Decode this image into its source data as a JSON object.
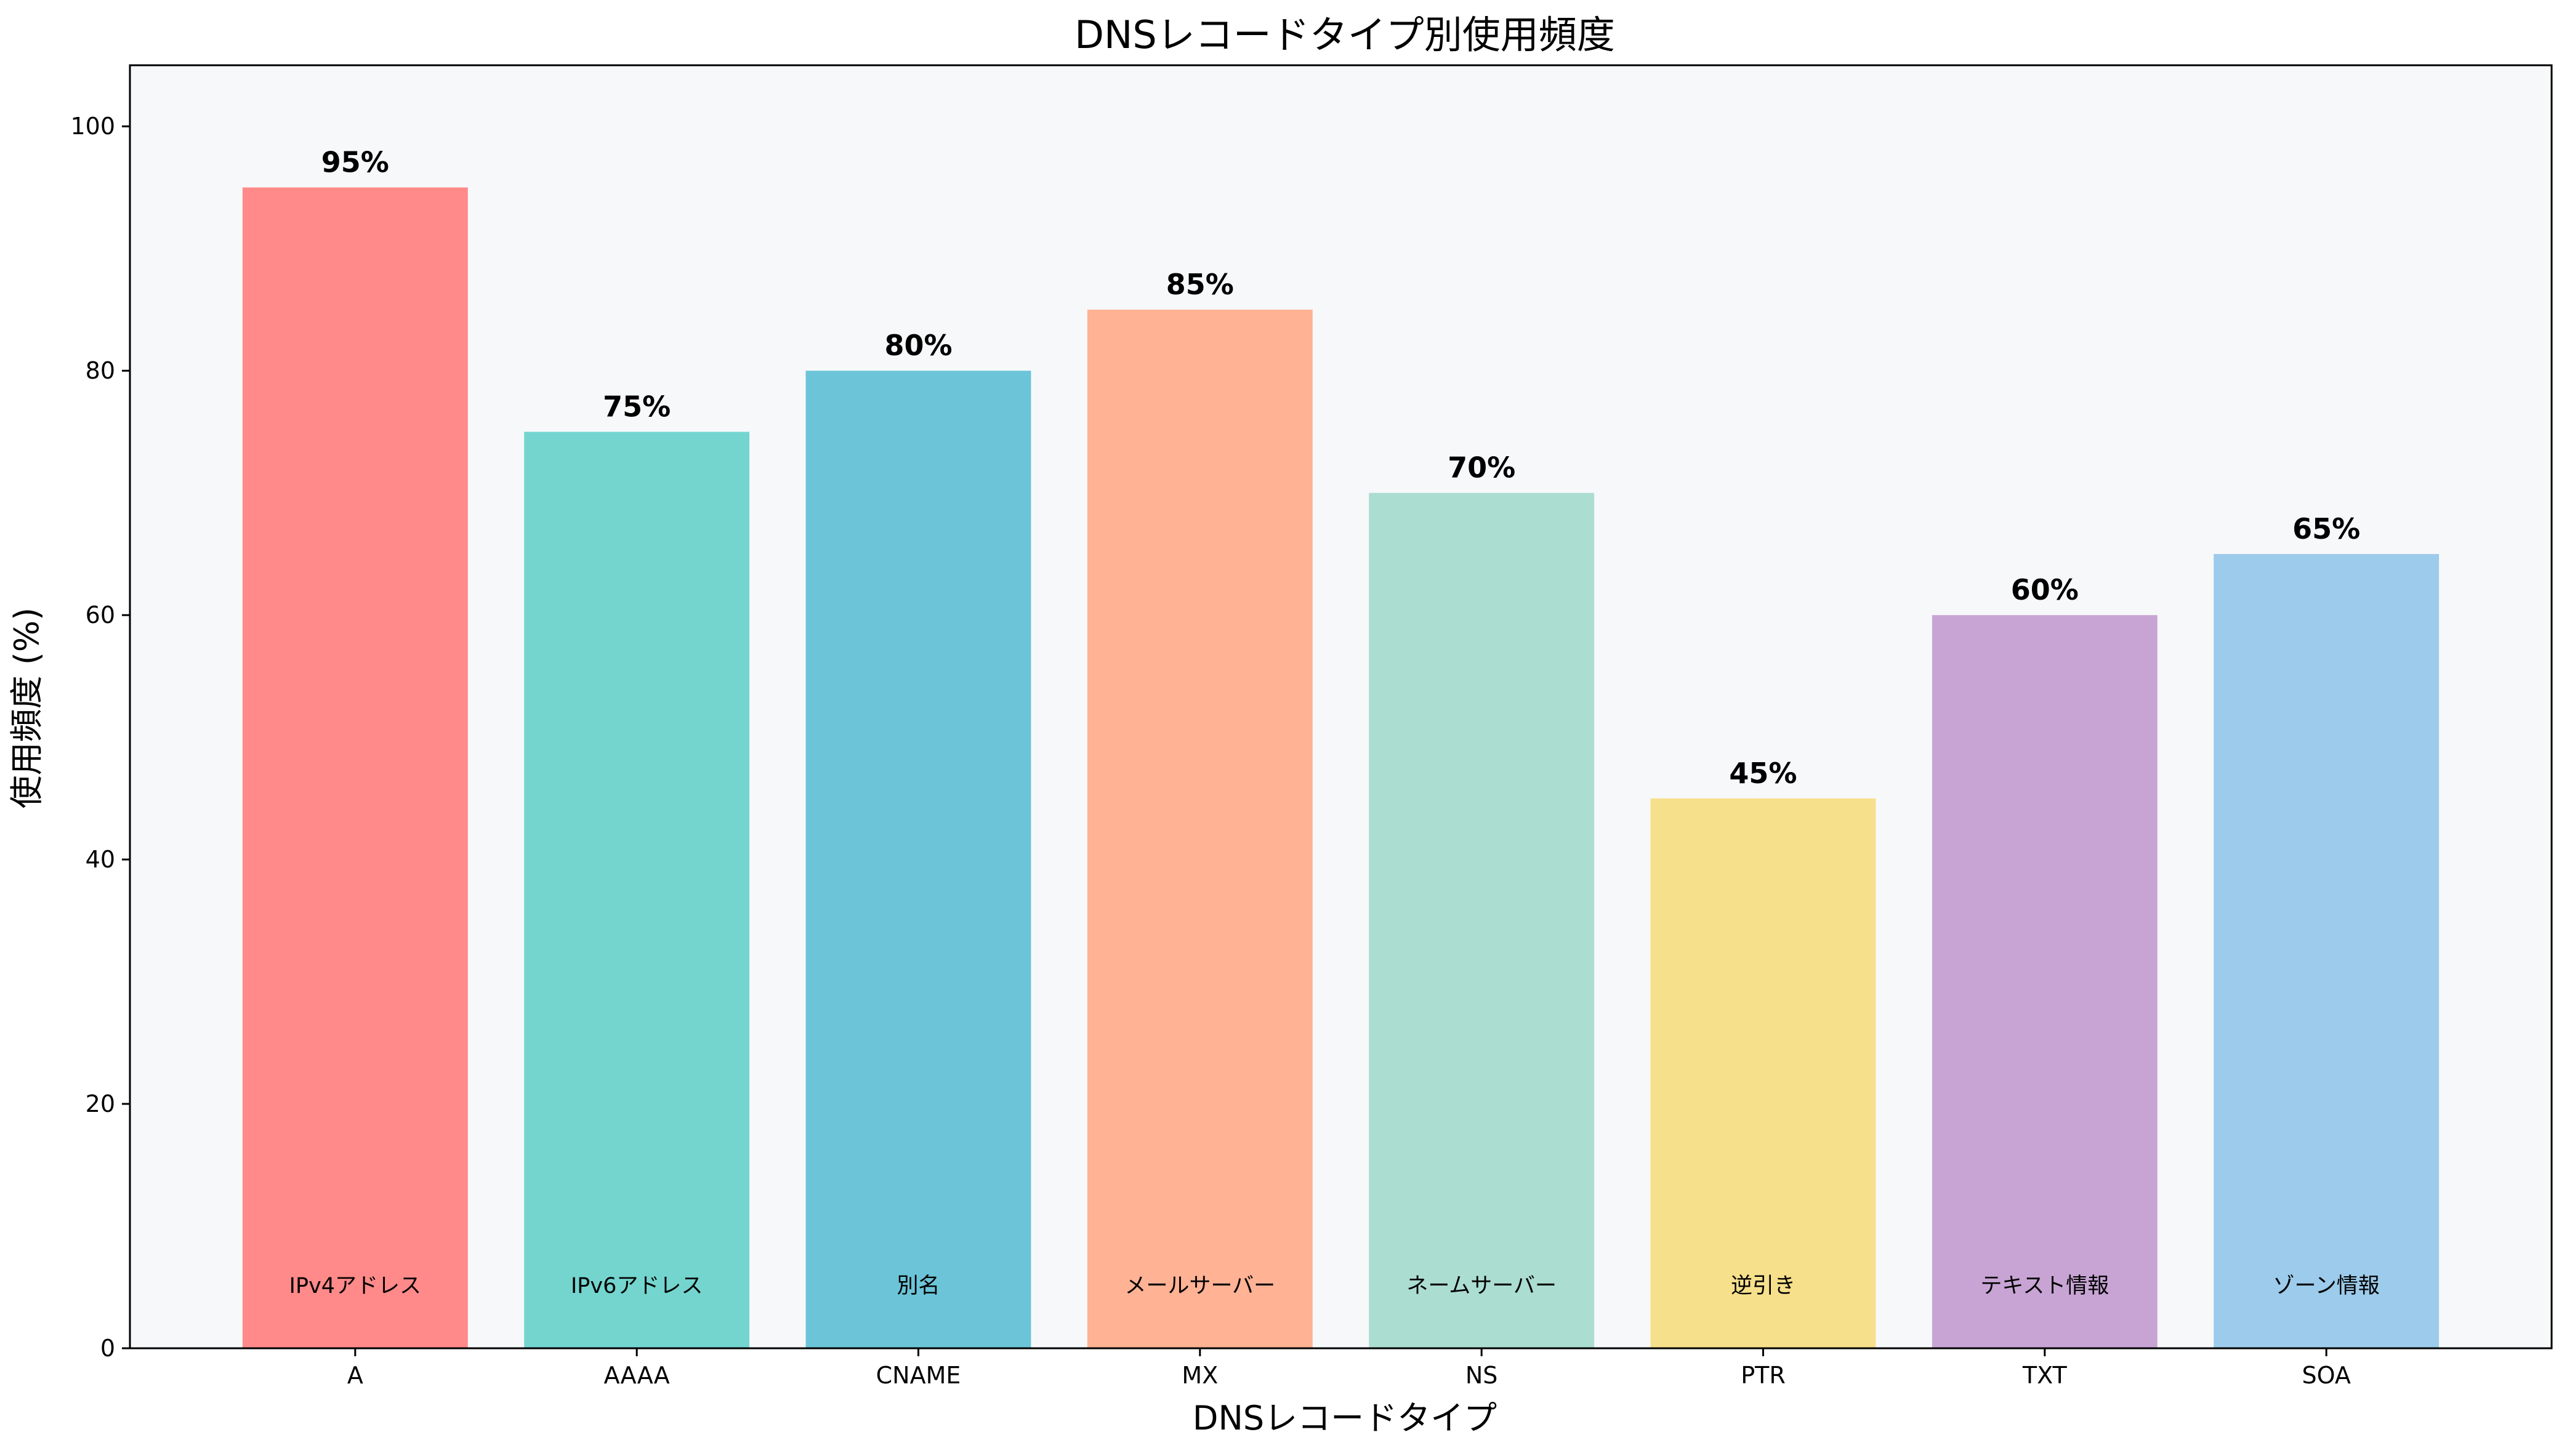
{
  "chart_data": {
    "type": "bar",
    "title": "DNSレコードタイプ別使用頻度",
    "xlabel": "DNSレコードタイプ",
    "ylabel": "使用頻度 (%)",
    "ylim": [
      0,
      105
    ],
    "yticks": [
      0,
      20,
      40,
      60,
      80,
      100
    ],
    "grid": false,
    "categories": [
      "A",
      "AAAA",
      "CNAME",
      "MX",
      "NS",
      "PTR",
      "TXT",
      "SOA"
    ],
    "values": [
      95,
      75,
      80,
      85,
      70,
      45,
      60,
      65
    ],
    "value_labels": [
      "95%",
      "75%",
      "80%",
      "85%",
      "70%",
      "45%",
      "60%",
      "65%"
    ],
    "descriptions": [
      "IPv4アドレス",
      "IPv6アドレス",
      "別名",
      "メールサーバー",
      "ネームサーバー",
      "逆引き",
      "テキスト情報",
      "ゾーン情報"
    ],
    "colors": [
      "#FF8A89",
      "#74D5CF",
      "#6CC4D8",
      "#FFB294",
      "#ABDDD1",
      "#F7E08B",
      "#C8A4D5",
      "#9CCBEB"
    ],
    "plot_background": "#F7F8FA"
  }
}
